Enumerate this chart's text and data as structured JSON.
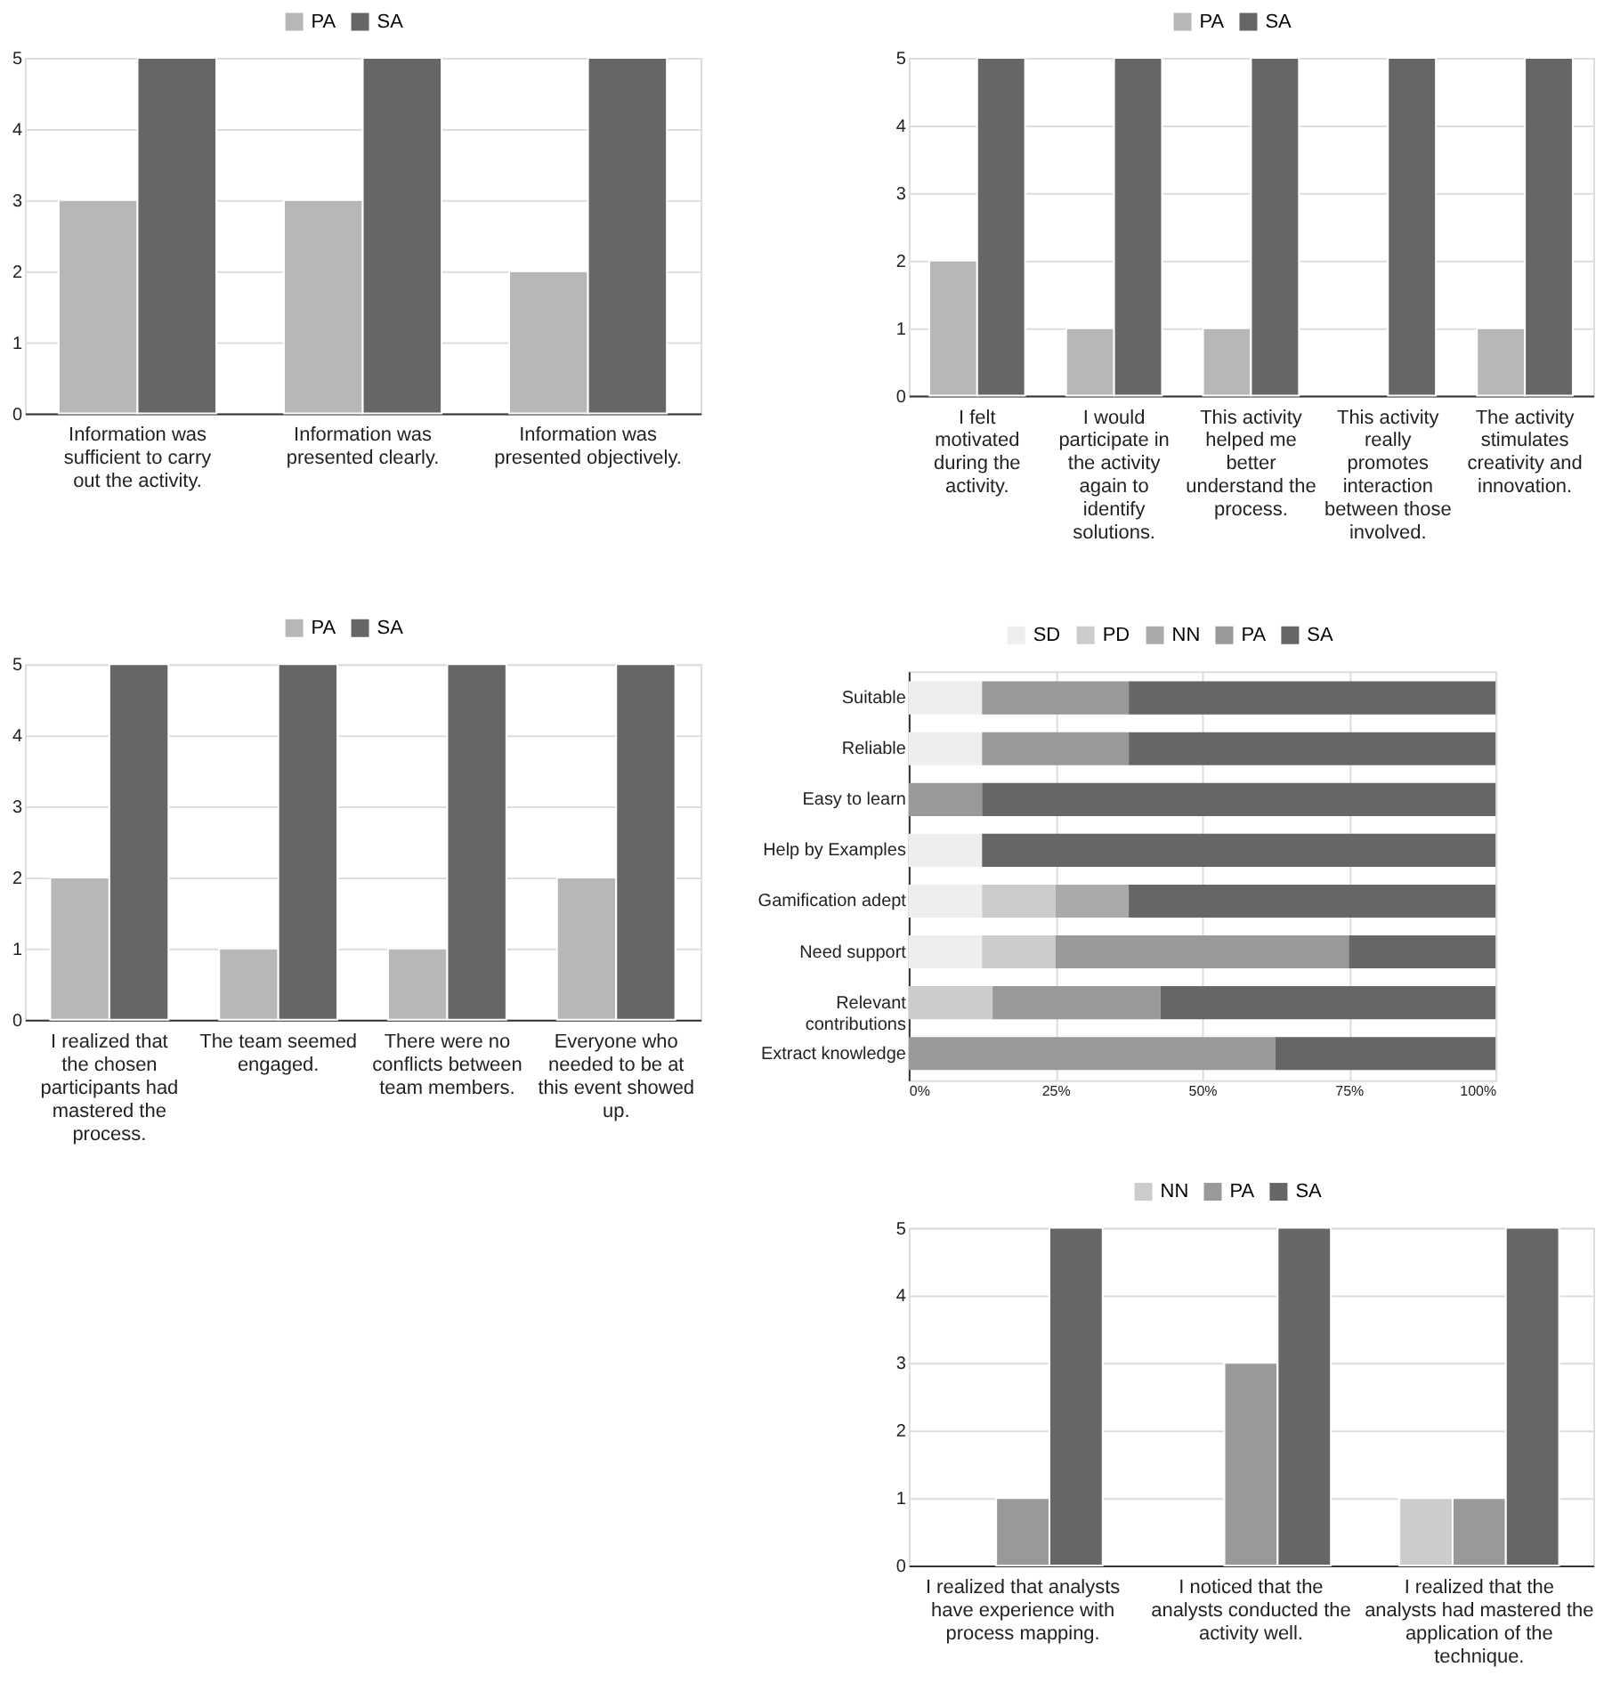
{
  "chart_data": [
    {
      "type": "bar",
      "categories": [
        "Information was sufficient to carry out the activity.",
        "Information was presented clearly.",
        "Information was presented objectively."
      ],
      "series": [
        {
          "name": "PA",
          "color": "#b7b7b7",
          "values": [
            3,
            3,
            2
          ]
        },
        {
          "name": "SA",
          "color": "#666666",
          "values": [
            5,
            5,
            5
          ]
        }
      ],
      "ylim": [
        0,
        5
      ],
      "yticks": [
        0,
        1,
        2,
        3,
        4,
        5
      ],
      "grid": "y",
      "legend": "top"
    },
    {
      "type": "bar",
      "categories": [
        "I realized that the chosen participants had mastered the process.",
        "The team seemed engaged.",
        "There were no conflicts between team members.",
        "Everyone who needed to be at this event showed up."
      ],
      "series": [
        {
          "name": "PA",
          "color": "#b7b7b7",
          "values": [
            2,
            1,
            1,
            2
          ]
        },
        {
          "name": "SA",
          "color": "#666666",
          "values": [
            5,
            5,
            5,
            5
          ]
        }
      ],
      "ylim": [
        0,
        5
      ],
      "yticks": [
        0,
        1,
        2,
        3,
        4,
        5
      ],
      "grid": "y",
      "legend": "top"
    },
    {
      "type": "bar",
      "categories": [
        "I felt motivated during the activity.",
        "I would participate in the activity again to identify solutions.",
        "This activity helped me better understand the process.",
        "This activity really promotes interaction between those involved.",
        "The activity stimulates creativity and innovation."
      ],
      "series": [
        {
          "name": "PA",
          "color": "#b7b7b7",
          "values": [
            2,
            1,
            1,
            null,
            1
          ]
        },
        {
          "name": "SA",
          "color": "#666666",
          "values": [
            5,
            5,
            5,
            5,
            5
          ]
        }
      ],
      "ylim": [
        0,
        5
      ],
      "yticks": [
        0,
        1,
        2,
        3,
        4,
        5
      ],
      "grid": "y",
      "legend": "top"
    },
    {
      "type": "bar",
      "orientation": "horizontal",
      "stacked": true,
      "categories": [
        "Suitable",
        "Reliable",
        "Easy to learn",
        "Help by Examples",
        "Gamification adept",
        "Need support",
        "Relevant contributions",
        "Extract knowledge"
      ],
      "series": [
        {
          "name": "SD",
          "color": "#eeeeee",
          "values": [
            12.5,
            12.5,
            null,
            12.5,
            12.5,
            12.5,
            null,
            null
          ]
        },
        {
          "name": "PD",
          "color": "#cccccc",
          "values": [
            null,
            null,
            null,
            null,
            12.5,
            12.5,
            14.3,
            null
          ]
        },
        {
          "name": "NN",
          "color": "#aaaaaa",
          "values": [
            null,
            null,
            null,
            null,
            12.5,
            null,
            null,
            null
          ]
        },
        {
          "name": "PA",
          "color": "#999999",
          "values": [
            25,
            25,
            12.5,
            null,
            null,
            50,
            28.6,
            62.5
          ]
        },
        {
          "name": "SA",
          "color": "#666666",
          "values": [
            62.5,
            62.5,
            87.5,
            87.5,
            62.5,
            25,
            57.1,
            37.5
          ]
        }
      ],
      "xlim": [
        0,
        100
      ],
      "xticks": [
        {
          "value": 0,
          "label": "0%"
        },
        {
          "value": 25,
          "label": "25%"
        },
        {
          "value": 50,
          "label": "50%"
        },
        {
          "value": 75,
          "label": "75%"
        },
        {
          "value": 100,
          "label": "100%"
        }
      ],
      "grid": "x",
      "legend": "top"
    },
    {
      "type": "bar",
      "categories": [
        "I realized that analysts have experience with process mapping.",
        "I noticed that the analysts conducted the activity well.",
        "I realized that the analysts had mastered the application of the technique."
      ],
      "series": [
        {
          "name": "NN",
          "color": "#cccccc",
          "values": [
            null,
            null,
            1
          ]
        },
        {
          "name": "PA",
          "color": "#999999",
          "values": [
            1,
            3,
            1
          ]
        },
        {
          "name": "SA",
          "color": "#666666",
          "values": [
            5,
            5,
            5
          ]
        }
      ],
      "ylim": [
        0,
        5
      ],
      "yticks": [
        0,
        1,
        2,
        3,
        4,
        5
      ],
      "grid": "y",
      "legend": "top"
    }
  ]
}
